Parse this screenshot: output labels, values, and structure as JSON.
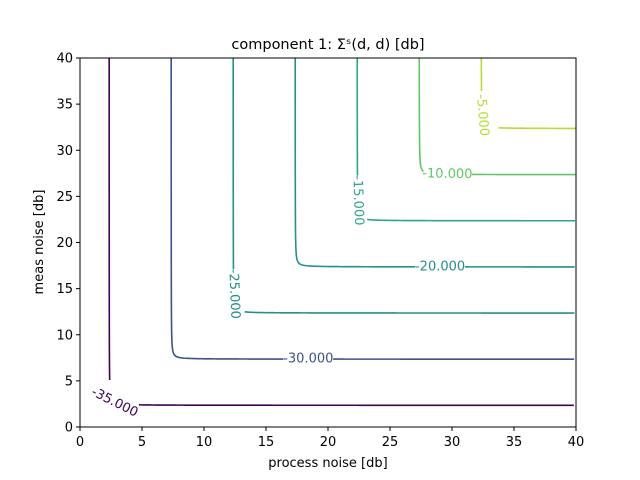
{
  "chart_data": {
    "type": "contour",
    "title": "component 1: Σˢ(d, d) [db]",
    "xlabel": "process noise [db]",
    "ylabel": "meas noise [db]",
    "xlim": [
      0,
      40
    ],
    "ylim": [
      0,
      40
    ],
    "x_ticks": [
      "0",
      "5",
      "10",
      "15",
      "20",
      "25",
      "30",
      "35",
      "40"
    ],
    "y_ticks": [
      "0",
      "5",
      "10",
      "15",
      "20",
      "25",
      "30",
      "35",
      "40"
    ],
    "grid": false,
    "levels": [
      {
        "value": -35,
        "label": "-35.000",
        "color": "#440154",
        "vertical_asymptote_x": 2,
        "horizontal_asymptote_y": 2
      },
      {
        "value": -30,
        "label": "-30.000",
        "color": "#3b528b",
        "vertical_asymptote_x": 7,
        "horizontal_asymptote_y": 7
      },
      {
        "value": -25,
        "label": "-25.000",
        "color": "#21918c",
        "vertical_asymptote_x": 12,
        "horizontal_asymptote_y": 12
      },
      {
        "value": -20,
        "label": "-20.000",
        "color": "#21918c",
        "vertical_asymptote_x": 17,
        "horizontal_asymptote_y": 17
      },
      {
        "value": -15,
        "label": "-15.000",
        "color": "#2ca58b",
        "vertical_asymptote_x": 22,
        "horizontal_asymptote_y": 22
      },
      {
        "value": -10,
        "label": "-10.000",
        "color": "#5ec962",
        "vertical_asymptote_x": 27,
        "horizontal_asymptote_y": 27
      },
      {
        "value": -5,
        "label": "-5.000",
        "color": "#b5de2b",
        "vertical_asymptote_x": 32,
        "horizontal_asymptote_y": 32
      }
    ]
  }
}
